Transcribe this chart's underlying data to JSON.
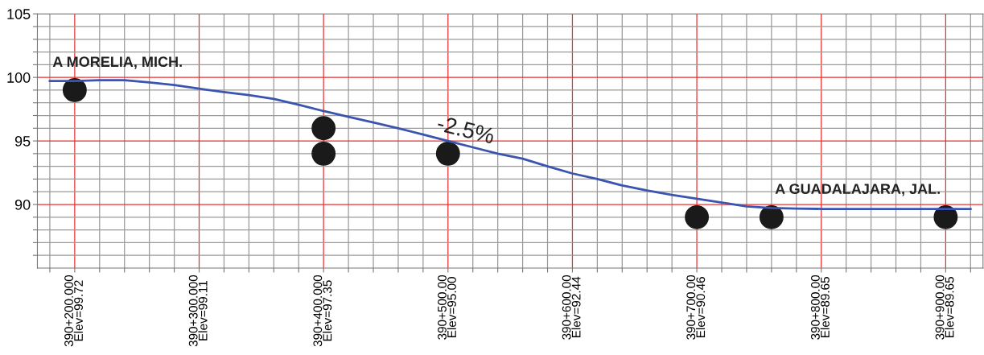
{
  "chart_data": {
    "type": "line",
    "ylim": [
      85,
      105
    ],
    "categories": [
      null,
      "390+200.000\nElev=99.72",
      null,
      null,
      null,
      null,
      "390+300.000\nElev=99.11",
      null,
      null,
      null,
      null,
      "390+400.000\nElev=97.35",
      null,
      null,
      null,
      null,
      "390+500.00\nElev=95.00",
      null,
      null,
      null,
      null,
      "390+600.00\nElev=92.44",
      null,
      null,
      null,
      null,
      "390+700.00\nElev=90.46",
      null,
      null,
      null,
      null,
      "390+800.00\nElev=89.65",
      null,
      null,
      null,
      null,
      "390+900.00\nElev=89.65",
      null
    ],
    "yticks": [
      {
        "value": 86,
        "label": null
      },
      {
        "value": 87,
        "label": null
      },
      {
        "value": 88,
        "label": null
      },
      {
        "value": 89,
        "label": null
      },
      90,
      {
        "value": 91,
        "label": null
      },
      {
        "value": 92,
        "label": null
      },
      {
        "value": 93,
        "label": null
      },
      {
        "value": 94,
        "label": null
      },
      95,
      {
        "value": 96,
        "label": null
      },
      {
        "value": 97,
        "label": null
      },
      {
        "value": 98,
        "label": null
      },
      {
        "value": 99,
        "label": null
      },
      100,
      {
        "value": 101,
        "label": null
      },
      {
        "value": 102,
        "label": null
      },
      {
        "value": 103,
        "label": null
      },
      {
        "value": 104,
        "label": null
      },
      105
    ],
    "grid": true,
    "series": [
      {
        "color": "#3a55b0",
        "values": [
          99.72,
          99.72,
          99.78,
          99.78,
          99.6,
          99.4,
          99.11,
          98.85,
          98.6,
          98.3,
          97.85,
          97.35,
          96.9,
          96.45,
          96.0,
          95.5,
          95.0,
          94.5,
          94.0,
          93.6,
          93.0,
          92.44,
          92.0,
          91.5,
          91.1,
          90.75,
          90.46,
          90.15,
          89.85,
          89.72,
          89.68,
          89.65,
          89.65,
          89.65,
          89.65,
          89.65,
          89.65,
          89.65
        ]
      },
      {
        "type": "scatter",
        "color": "#1a1a1a",
        "marker": "circle",
        "values": [
          null,
          99,
          null,
          null,
          null,
          null,
          null,
          null,
          null,
          null,
          null,
          96,
          null,
          null,
          null,
          null,
          94,
          null,
          null,
          null,
          null,
          null,
          null,
          null,
          null,
          null,
          89,
          null,
          null,
          89,
          null,
          null,
          null,
          null,
          null,
          null,
          89,
          null
        ]
      },
      {
        "type": "scatter",
        "color": "#1a1a1a",
        "marker": "circle",
        "values": [
          null,
          null,
          null,
          null,
          null,
          null,
          null,
          null,
          null,
          null,
          null,
          94,
          null,
          null,
          null,
          null,
          null,
          null,
          null,
          null,
          null,
          null,
          null,
          null,
          null,
          null,
          null,
          null,
          null,
          null,
          null,
          null,
          null,
          null,
          null,
          null,
          null,
          null
        ]
      }
    ],
    "annotations": [
      "A MORELIA, MICH.",
      "-2.5%",
      "A GUADALAJARA, JAL."
    ]
  }
}
